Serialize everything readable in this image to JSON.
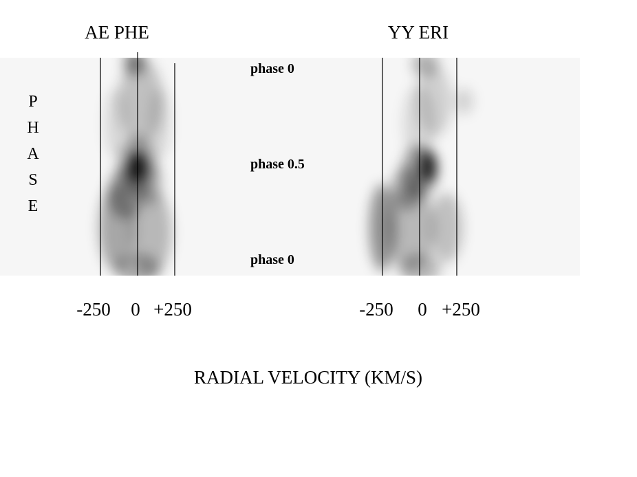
{
  "chart_data": {
    "type": "heatmap",
    "xlabel": "RADIAL VELOCITY (KM/S)",
    "ylabel": "PHASE",
    "panels": [
      {
        "title": "AE PHE",
        "x_ticks": [
          "-250",
          "0",
          "+250"
        ],
        "vertical_lines_at": [
          -250,
          0,
          250
        ],
        "blobs": [
          {
            "v": -20,
            "phase": 0.02,
            "rv": 70,
            "rp": 0.06,
            "w": 0.45
          },
          {
            "v": 20,
            "phase": 0.2,
            "rv": 150,
            "rp": 0.2,
            "w": 0.22
          },
          {
            "v": -150,
            "phase": 0.3,
            "rv": 70,
            "rp": 0.16,
            "w": 0.12
          },
          {
            "v": 150,
            "phase": 0.3,
            "rv": 70,
            "rp": 0.16,
            "w": 0.12
          },
          {
            "v": 0,
            "phase": 0.5,
            "rv": 55,
            "rp": 0.07,
            "w": 0.95
          },
          {
            "v": 0,
            "phase": 0.5,
            "rv": 130,
            "rp": 0.14,
            "w": 0.35
          },
          {
            "v": -80,
            "phase": 0.62,
            "rv": 120,
            "rp": 0.12,
            "w": 0.35
          },
          {
            "v": 90,
            "phase": 0.58,
            "rv": 80,
            "rp": 0.1,
            "w": 0.2
          },
          {
            "v": -140,
            "phase": 0.78,
            "rv": 120,
            "rp": 0.2,
            "w": 0.32
          },
          {
            "v": 90,
            "phase": 0.8,
            "rv": 140,
            "rp": 0.2,
            "w": 0.25
          },
          {
            "v": 0,
            "phase": 0.97,
            "rv": 150,
            "rp": 0.07,
            "w": 0.3
          }
        ]
      },
      {
        "title": "YY ERI",
        "x_ticks": [
          "-250",
          "0",
          "+250"
        ],
        "vertical_lines_at": [
          -250,
          0,
          250
        ],
        "blobs": [
          {
            "v": 40,
            "phase": 0.03,
            "rv": 90,
            "rp": 0.06,
            "w": 0.28
          },
          {
            "v": 100,
            "phase": 0.2,
            "rv": 120,
            "rp": 0.16,
            "w": 0.15
          },
          {
            "v": 300,
            "phase": 0.2,
            "rv": 60,
            "rp": 0.06,
            "w": 0.15
          },
          {
            "v": 0,
            "phase": 0.3,
            "rv": 110,
            "rp": 0.18,
            "w": 0.12
          },
          {
            "v": 60,
            "phase": 0.5,
            "rv": 55,
            "rp": 0.07,
            "w": 0.85
          },
          {
            "v": 0,
            "phase": 0.52,
            "rv": 120,
            "rp": 0.12,
            "w": 0.35
          },
          {
            "v": -80,
            "phase": 0.6,
            "rv": 110,
            "rp": 0.1,
            "w": 0.3
          },
          {
            "v": -250,
            "phase": 0.78,
            "rv": 90,
            "rp": 0.2,
            "w": 0.4
          },
          {
            "v": -60,
            "phase": 0.78,
            "rv": 160,
            "rp": 0.2,
            "w": 0.25
          },
          {
            "v": 180,
            "phase": 0.78,
            "rv": 110,
            "rp": 0.16,
            "w": 0.22
          },
          {
            "v": 0,
            "phase": 0.97,
            "rv": 140,
            "rp": 0.07,
            "w": 0.25
          }
        ]
      }
    ],
    "phase_markers": [
      {
        "label": "phase 0",
        "phase": 0
      },
      {
        "label": "phase 0.5",
        "phase": 0.5
      },
      {
        "label": "phase 0",
        "phase": 1
      }
    ],
    "colormap": "grayscale"
  }
}
